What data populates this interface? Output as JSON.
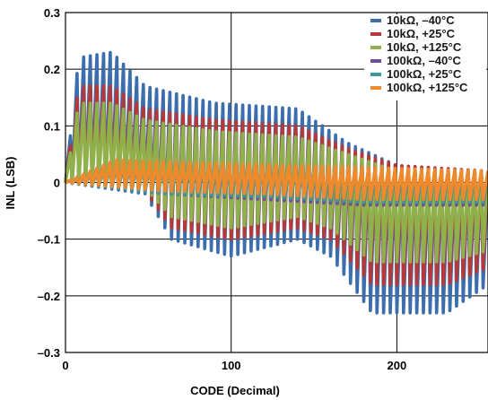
{
  "chart_data": {
    "type": "line",
    "xlabel": "CODE (Decimal)",
    "ylabel": "INL (LSB)",
    "xlim": [
      0,
      255
    ],
    "ylim": [
      -0.3,
      0.3
    ],
    "xticks": [
      0,
      100,
      200
    ],
    "xtick_labels": [
      "0",
      "100",
      "200"
    ],
    "yticks": [
      -0.3,
      -0.2,
      -0.1,
      0,
      0.1,
      0.2,
      0.3
    ],
    "ytick_labels": [
      "–0.3",
      "–0.2",
      "–0.1",
      "0",
      "0.1",
      "0.2",
      "0.3"
    ],
    "grid": true,
    "legend_position": "top-right",
    "sawtooth_period_codes": 4,
    "series": [
      {
        "name": "10kΩ, –40°C",
        "color": "#3c6eae",
        "peak_envelope": [
          [
            0,
            0.0
          ],
          [
            8,
            0.22
          ],
          [
            28,
            0.23
          ],
          [
            48,
            0.17
          ],
          [
            90,
            0.14
          ],
          [
            140,
            0.13
          ],
          [
            170,
            0.07
          ],
          [
            200,
            0.03
          ],
          [
            255,
            0.02
          ]
        ],
        "trough_envelope": [
          [
            0,
            0.0
          ],
          [
            48,
            -0.02
          ],
          [
            64,
            -0.1
          ],
          [
            100,
            -0.13
          ],
          [
            140,
            -0.1
          ],
          [
            160,
            -0.13
          ],
          [
            185,
            -0.23
          ],
          [
            230,
            -0.23
          ],
          [
            255,
            -0.18
          ]
        ]
      },
      {
        "name": "10kΩ, +25°C",
        "color": "#b5383b",
        "peak_envelope": [
          [
            0,
            0.0
          ],
          [
            8,
            0.17
          ],
          [
            28,
            0.17
          ],
          [
            48,
            0.13
          ],
          [
            90,
            0.11
          ],
          [
            140,
            0.1
          ],
          [
            170,
            0.06
          ],
          [
            200,
            0.03
          ],
          [
            255,
            0.02
          ]
        ],
        "trough_envelope": [
          [
            0,
            0.0
          ],
          [
            48,
            -0.015
          ],
          [
            64,
            -0.08
          ],
          [
            100,
            -0.1
          ],
          [
            140,
            -0.08
          ],
          [
            160,
            -0.1
          ],
          [
            185,
            -0.18
          ],
          [
            230,
            -0.18
          ],
          [
            255,
            -0.15
          ]
        ]
      },
      {
        "name": "10kΩ, +125°C",
        "color": "#8fb04a",
        "peak_envelope": [
          [
            0,
            0.0
          ],
          [
            8,
            0.14
          ],
          [
            28,
            0.14
          ],
          [
            48,
            0.11
          ],
          [
            90,
            0.09
          ],
          [
            140,
            0.08
          ],
          [
            170,
            0.05
          ],
          [
            200,
            0.02
          ],
          [
            255,
            0.015
          ]
        ],
        "trough_envelope": [
          [
            0,
            0.0
          ],
          [
            48,
            -0.01
          ],
          [
            64,
            -0.06
          ],
          [
            100,
            -0.08
          ],
          [
            140,
            -0.06
          ],
          [
            160,
            -0.08
          ],
          [
            185,
            -0.14
          ],
          [
            230,
            -0.14
          ],
          [
            255,
            -0.12
          ]
        ]
      },
      {
        "name": "100kΩ, –40°C",
        "color": "#6e4f96",
        "peak_envelope": [
          [
            0,
            0.0
          ],
          [
            30,
            0.04
          ],
          [
            80,
            0.03
          ],
          [
            140,
            0.03
          ],
          [
            200,
            0.02
          ],
          [
            255,
            0.02
          ]
        ],
        "trough_envelope": [
          [
            0,
            0.0
          ],
          [
            60,
            -0.02
          ],
          [
            120,
            -0.03
          ],
          [
            180,
            -0.04
          ],
          [
            255,
            -0.04
          ]
        ]
      },
      {
        "name": "100kΩ, +25°C",
        "color": "#3a9a9a",
        "peak_envelope": [
          [
            0,
            0.0
          ],
          [
            30,
            0.03
          ],
          [
            80,
            0.03
          ],
          [
            140,
            0.02
          ],
          [
            200,
            0.02
          ],
          [
            255,
            0.015
          ]
        ],
        "trough_envelope": [
          [
            0,
            0.0
          ],
          [
            60,
            -0.02
          ],
          [
            120,
            -0.025
          ],
          [
            180,
            -0.035
          ],
          [
            255,
            -0.035
          ]
        ]
      },
      {
        "name": "100kΩ, +125°C",
        "color": "#ee8a2c",
        "peak_envelope": [
          [
            0,
            0.0
          ],
          [
            30,
            0.04
          ],
          [
            80,
            0.035
          ],
          [
            140,
            0.03
          ],
          [
            200,
            0.025
          ],
          [
            255,
            0.02
          ]
        ],
        "trough_envelope": [
          [
            0,
            0.0
          ],
          [
            60,
            -0.015
          ],
          [
            120,
            -0.02
          ],
          [
            180,
            -0.03
          ],
          [
            255,
            -0.03
          ]
        ]
      }
    ]
  }
}
